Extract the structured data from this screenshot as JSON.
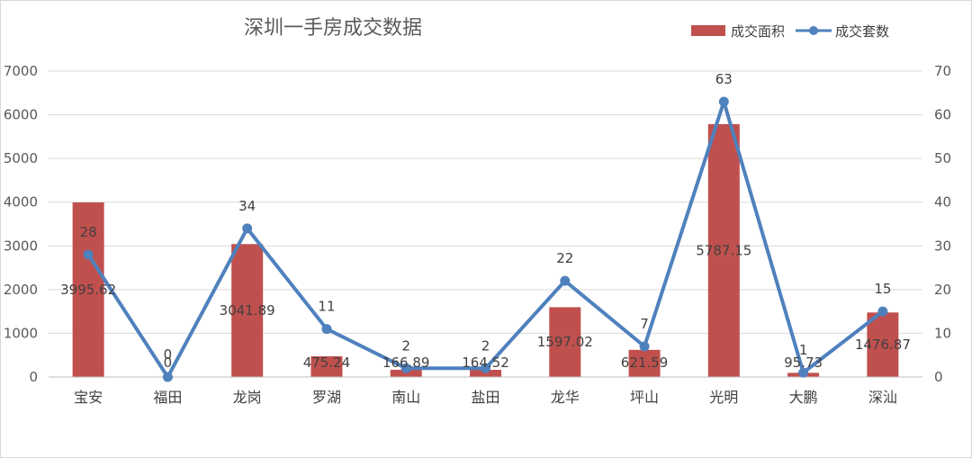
{
  "chart_data": {
    "type": "bar+line",
    "title": "深圳一手房成交数据",
    "categories": [
      "宝安",
      "福田",
      "龙岗",
      "罗湖",
      "南山",
      "盐田",
      "龙华",
      "坪山",
      "光明",
      "大鹏",
      "深汕"
    ],
    "series": [
      {
        "name": "成交面积",
        "type": "bar",
        "axis": "left",
        "color": "#c0504d",
        "values": [
          3995.62,
          0,
          3041.89,
          475.24,
          166.89,
          164.52,
          1597.02,
          621.59,
          5787.15,
          95.73,
          1476.87
        ],
        "labels": [
          "3995.62",
          "0",
          "3041.89",
          "475.24",
          "166.89",
          "164.52",
          "1597.02",
          "621.59",
          "5787.15",
          "95.73",
          "1476.87"
        ]
      },
      {
        "name": "成交套数",
        "type": "line",
        "axis": "right",
        "color": "#4f81bd",
        "values": [
          28,
          0,
          34,
          11,
          2,
          2,
          22,
          7,
          63,
          1,
          15
        ],
        "labels": [
          "28",
          "0",
          "34",
          "11",
          "2",
          "2",
          "22",
          "7",
          "63",
          "1",
          "15"
        ]
      }
    ],
    "y_left": {
      "min": 0,
      "max": 7000,
      "ticks": [
        "0",
        "1000",
        "2000",
        "3000",
        "4000",
        "5000",
        "6000",
        "7000"
      ]
    },
    "y_right": {
      "min": 0,
      "max": 70,
      "ticks": [
        "0",
        "10",
        "20",
        "30",
        "40",
        "50",
        "60",
        "70"
      ]
    },
    "grid": true,
    "legend_position": "top-right"
  }
}
